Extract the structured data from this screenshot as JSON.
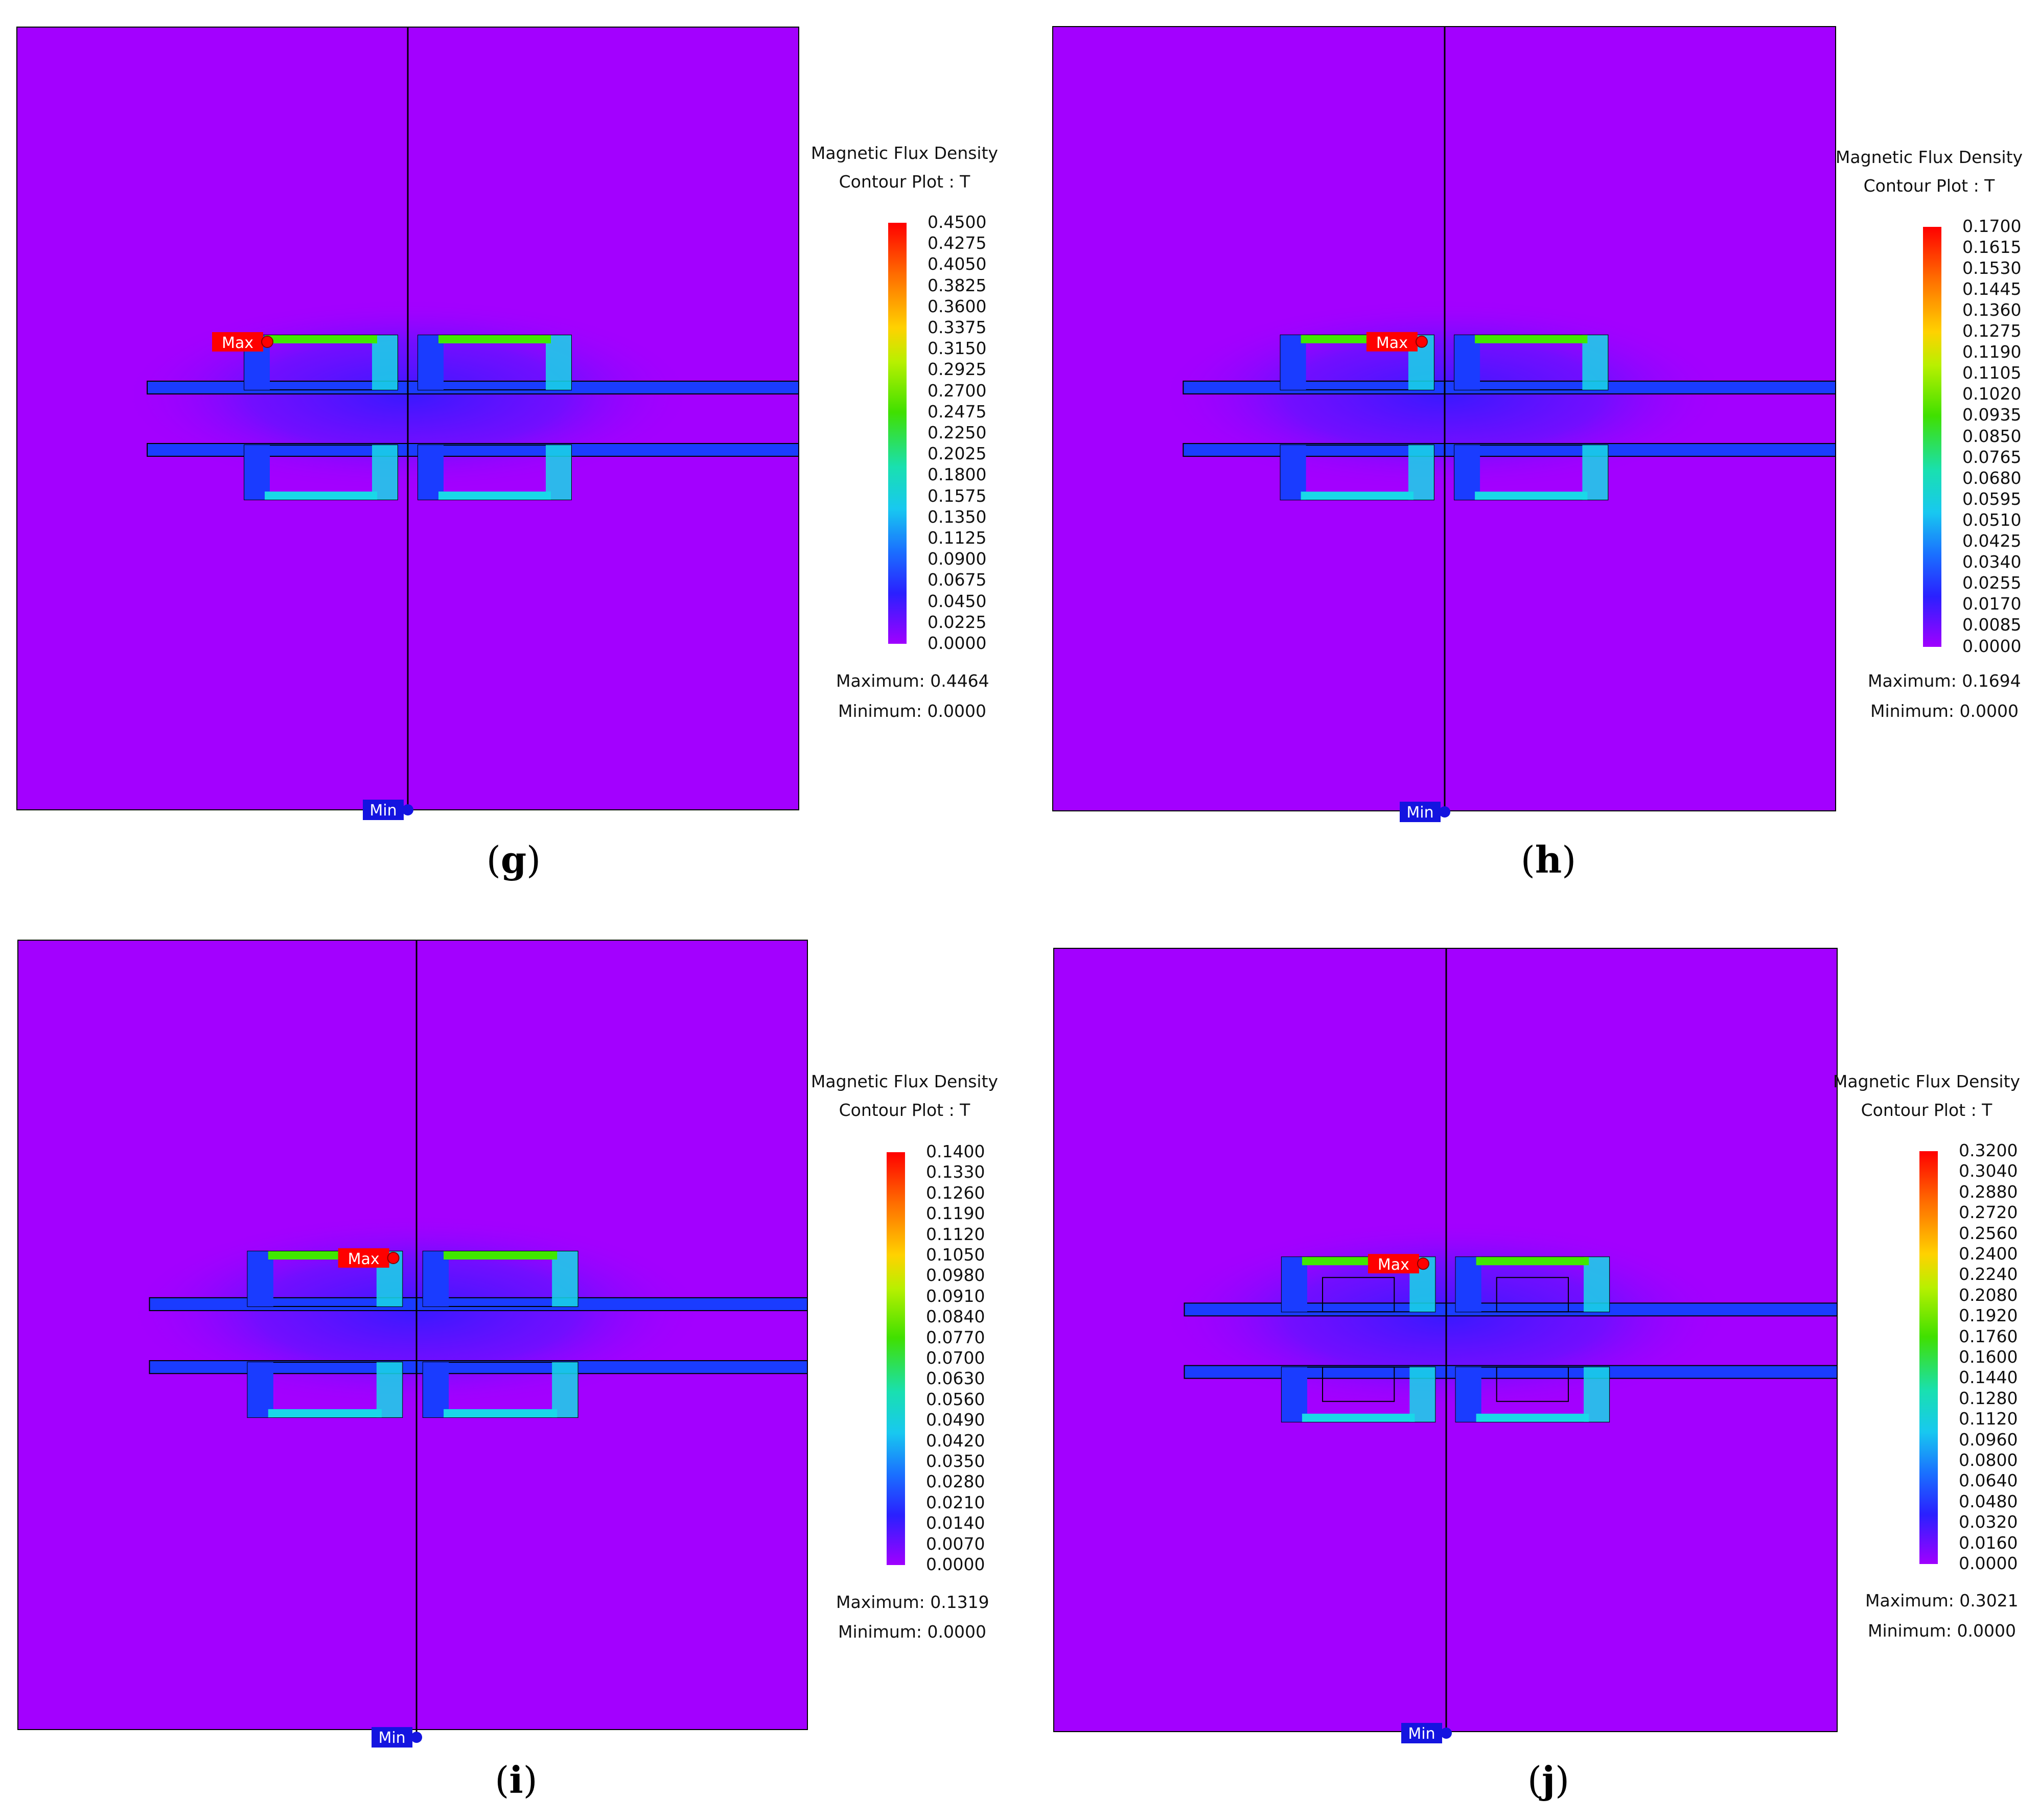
{
  "panels": [
    {
      "id": "g",
      "caption": "g",
      "legend_title_1": "Magnetic Flux Density",
      "legend_title_2": "Contour Plot : T",
      "ticks": [
        "0.4500",
        "0.4275",
        "0.4050",
        "0.3825",
        "0.3600",
        "0.3375",
        "0.3150",
        "0.2925",
        "0.2700",
        "0.2475",
        "0.2250",
        "0.2025",
        "0.1800",
        "0.1575",
        "0.1350",
        "0.1125",
        "0.0900",
        "0.0675",
        "0.0450",
        "0.0225",
        "0.0000"
      ],
      "maximum": "Maximum: 0.4464",
      "minimum": "Minimum: 0.0000",
      "max_label": "Max",
      "min_label": "Min"
    },
    {
      "id": "h",
      "caption": "h",
      "legend_title_1": "Magnetic Flux Density",
      "legend_title_2": "Contour Plot : T",
      "ticks": [
        "0.1700",
        "0.1615",
        "0.1530",
        "0.1445",
        "0.1360",
        "0.1275",
        "0.1190",
        "0.1105",
        "0.1020",
        "0.0935",
        "0.0850",
        "0.0765",
        "0.0680",
        "0.0595",
        "0.0510",
        "0.0425",
        "0.0340",
        "0.0255",
        "0.0170",
        "0.0085",
        "0.0000"
      ],
      "maximum": "Maximum: 0.1694",
      "minimum": "Minimum: 0.0000",
      "max_label": "Max",
      "min_label": "Min"
    },
    {
      "id": "i",
      "caption": "i",
      "legend_title_1": "Magnetic Flux Density",
      "legend_title_2": "Contour Plot : T",
      "ticks": [
        "0.1400",
        "0.1330",
        "0.1260",
        "0.1190",
        "0.1120",
        "0.1050",
        "0.0980",
        "0.0910",
        "0.0840",
        "0.0770",
        "0.0700",
        "0.0630",
        "0.0560",
        "0.0490",
        "0.0420",
        "0.0350",
        "0.0280",
        "0.0210",
        "0.0140",
        "0.0070",
        "0.0000"
      ],
      "maximum": "Maximum: 0.1319",
      "minimum": "Minimum: 0.0000",
      "max_label": "Max",
      "min_label": "Min"
    },
    {
      "id": "j",
      "caption": "j",
      "legend_title_1": "Magnetic Flux Density",
      "legend_title_2": "Contour Plot : T",
      "ticks": [
        "0.3200",
        "0.3040",
        "0.2880",
        "0.2720",
        "0.2560",
        "0.2400",
        "0.2240",
        "0.2080",
        "0.1920",
        "0.1760",
        "0.1600",
        "0.1440",
        "0.1280",
        "0.1120",
        "0.0960",
        "0.0800",
        "0.0640",
        "0.0480",
        "0.0320",
        "0.0160",
        "0.0000"
      ],
      "maximum": "Maximum: 0.3021",
      "minimum": "Minimum: 0.0000",
      "max_label": "Max",
      "min_label": "Min"
    }
  ],
  "colors": {
    "background_field": "#a300ff",
    "core_low": "#1a3cff",
    "core_mid": "#19d8e8",
    "core_high": "#40e800",
    "max_marker": "#ff0000",
    "min_marker": "#1414e0"
  }
}
